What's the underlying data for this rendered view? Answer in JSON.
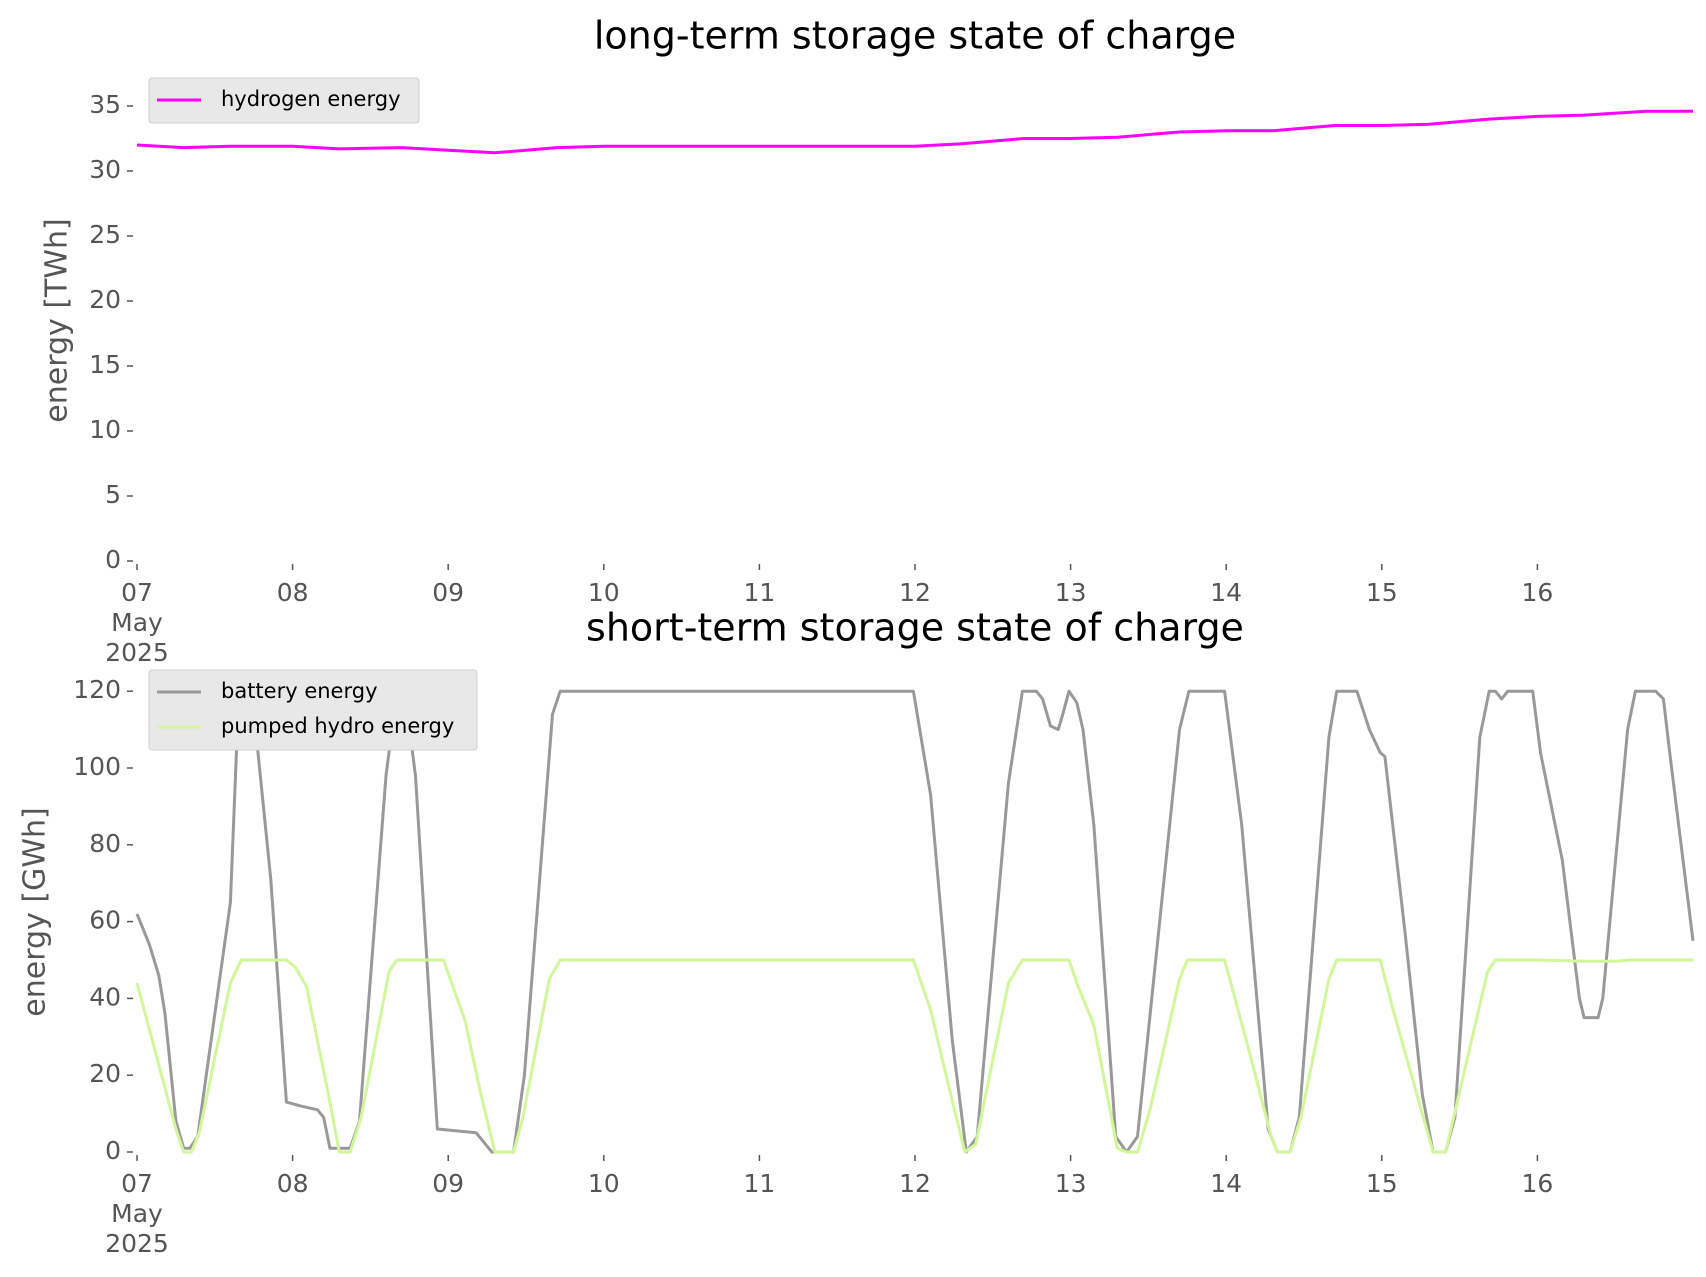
{
  "chart_data": [
    {
      "type": "line",
      "title": "long-term storage state of charge",
      "y_label": "energy [TWh]",
      "xlim": [
        7,
        17
      ],
      "ylim": [
        0,
        37
      ],
      "xticks": [
        {
          "value": 7,
          "label": "07\nMay\n2025"
        },
        {
          "value": 8,
          "label": "08"
        },
        {
          "value": 9,
          "label": "09"
        },
        10,
        11,
        12,
        13,
        14,
        15,
        16
      ],
      "yticks": [
        0,
        5,
        10,
        15,
        20,
        25,
        30,
        35
      ],
      "grid": false,
      "legend": "upper left",
      "series": [
        {
          "name": "hydrogen energy",
          "color": "#ff00ff",
          "x": [
            7.0,
            7.3,
            7.6,
            8.0,
            8.3,
            8.7,
            9.0,
            9.3,
            9.7,
            10.0,
            11.0,
            12.0,
            12.3,
            12.7,
            13.0,
            13.3,
            13.7,
            14.0,
            14.3,
            14.7,
            15.0,
            15.3,
            15.7,
            16.0,
            16.3,
            16.7,
            17.0
          ],
          "values": [
            32.0,
            31.8,
            31.9,
            31.9,
            31.7,
            31.8,
            31.6,
            31.4,
            31.8,
            31.9,
            31.9,
            31.9,
            32.1,
            32.5,
            32.5,
            32.6,
            33.0,
            33.1,
            33.1,
            33.5,
            33.5,
            33.6,
            34.0,
            34.2,
            34.3,
            34.6,
            34.6
          ]
        }
      ]
    },
    {
      "type": "line",
      "title": "short-term storage state of charge",
      "y_label": "energy [GWh]",
      "xlim": [
        7,
        17
      ],
      "ylim": [
        0,
        125
      ],
      "xticks": [
        {
          "value": 7,
          "label": "07\nMay\n2025"
        },
        {
          "value": 8,
          "label": "08"
        },
        {
          "value": 9,
          "label": "09"
        },
        10,
        11,
        12,
        13,
        14,
        15,
        16
      ],
      "yticks": [
        0,
        20,
        40,
        60,
        80,
        100,
        120
      ],
      "grid": false,
      "legend": "upper left",
      "series": [
        {
          "name": "battery energy",
          "color": "#999999",
          "x": [
            7.0,
            7.08,
            7.14,
            7.18,
            7.25,
            7.3,
            7.34,
            7.39,
            7.6,
            7.65,
            7.7,
            7.75,
            7.86,
            7.96,
            8.05,
            8.16,
            8.2,
            8.24,
            8.29,
            8.37,
            8.43,
            8.6,
            8.67,
            8.72,
            8.79,
            8.93,
            9.18,
            9.28,
            9.42,
            9.49,
            9.67,
            9.72,
            11.99,
            12.1,
            12.24,
            12.33,
            12.4,
            12.6,
            12.69,
            12.78,
            12.82,
            12.87,
            12.92,
            12.95,
            12.99,
            13.04,
            13.08,
            13.15,
            13.29,
            13.36,
            13.43,
            13.7,
            13.76,
            13.99,
            14.1,
            14.27,
            14.33,
            14.41,
            14.47,
            14.66,
            14.71,
            14.84,
            14.92,
            14.99,
            15.02,
            15.15,
            15.26,
            15.33,
            15.41,
            15.47,
            15.63,
            15.69,
            15.73,
            15.77,
            15.81,
            15.97,
            16.02,
            16.16,
            16.27,
            16.3,
            16.39,
            16.42,
            16.58,
            16.63,
            16.76,
            16.81,
            16.85,
            17.0
          ],
          "values": [
            62,
            54,
            46,
            36,
            8,
            1,
            1,
            4,
            65,
            115,
            120,
            115,
            71,
            13,
            12,
            11,
            9,
            1,
            1,
            1,
            8,
            98,
            120,
            120,
            98,
            6,
            5,
            0,
            0,
            20,
            114,
            120,
            120,
            93,
            29,
            0,
            4,
            96,
            120,
            120,
            118,
            111,
            110,
            114,
            120,
            117,
            110,
            85,
            4,
            0,
            4,
            110,
            120,
            120,
            85,
            6,
            0,
            0,
            9,
            108,
            120,
            120,
            110,
            104,
            103,
            57,
            15,
            0,
            0,
            9,
            108,
            120,
            120,
            118,
            120,
            120,
            104,
            76,
            40,
            35,
            35,
            40,
            110,
            120,
            120,
            118,
            104,
            55
          ]
        },
        {
          "name": "pumped hydro energy",
          "color": "#d2f69a",
          "x": [
            7.0,
            7.25,
            7.3,
            7.35,
            7.4,
            7.6,
            7.67,
            7.96,
            8.02,
            8.09,
            8.23,
            8.3,
            8.37,
            8.44,
            8.62,
            8.67,
            8.97,
            9.11,
            9.21,
            9.3,
            9.42,
            9.48,
            9.65,
            9.72,
            11.99,
            12.1,
            12.2,
            12.32,
            12.39,
            12.6,
            12.69,
            12.99,
            13.04,
            13.15,
            13.3,
            13.36,
            13.43,
            13.51,
            13.7,
            13.75,
            13.99,
            14.13,
            14.29,
            14.33,
            14.41,
            14.48,
            14.66,
            14.71,
            14.99,
            15.08,
            15.33,
            15.41,
            15.68,
            15.73,
            16.0,
            16.3,
            16.5,
            16.6,
            17.0
          ],
          "values": [
            44,
            6,
            0,
            0,
            5,
            44,
            50,
            50,
            48,
            43,
            15,
            0,
            0,
            9,
            47,
            50,
            50,
            34,
            15,
            0,
            0,
            9,
            45,
            50,
            50,
            37,
            20,
            0,
            2,
            44,
            50,
            50,
            44,
            33,
            1,
            0,
            0,
            11,
            45,
            50,
            50,
            29,
            4,
            0,
            0,
            9,
            45,
            50,
            50,
            36,
            0,
            0,
            47,
            50,
            50,
            49.7,
            49.7,
            50,
            50
          ]
        }
      ]
    }
  ]
}
